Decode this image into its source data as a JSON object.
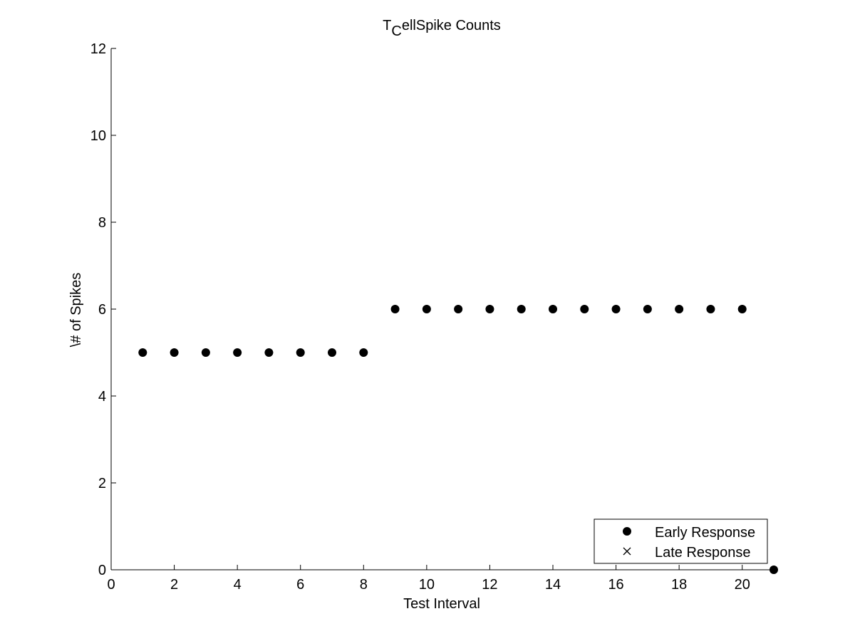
{
  "chart_data": {
    "type": "scatter",
    "title": "T",
    "title_subscript": "C",
    "title_rest": "ellSpike Counts",
    "xlabel": "Test Interval",
    "ylabel": "\\# of Spikes",
    "xlim": [
      0,
      21
    ],
    "ylim": [
      0,
      12
    ],
    "xticks": [
      0,
      2,
      4,
      6,
      8,
      10,
      12,
      14,
      16,
      18,
      20
    ],
    "yticks": [
      0,
      2,
      4,
      6,
      8,
      10,
      12
    ],
    "grid": false,
    "legend_position": "bottom-right",
    "series": [
      {
        "name": "Early Response",
        "marker": "filled-circle",
        "color": "#000000",
        "x": [
          1,
          2,
          3,
          4,
          5,
          6,
          7,
          8,
          9,
          10,
          11,
          12,
          13,
          14,
          15,
          16,
          17,
          18,
          19,
          20,
          21
        ],
        "y": [
          5,
          5,
          5,
          5,
          5,
          5,
          5,
          5,
          6,
          6,
          6,
          6,
          6,
          6,
          6,
          6,
          6,
          6,
          6,
          6,
          0
        ]
      },
      {
        "name": "Late Response",
        "marker": "x",
        "color": "#000000",
        "x": [],
        "y": []
      }
    ]
  }
}
